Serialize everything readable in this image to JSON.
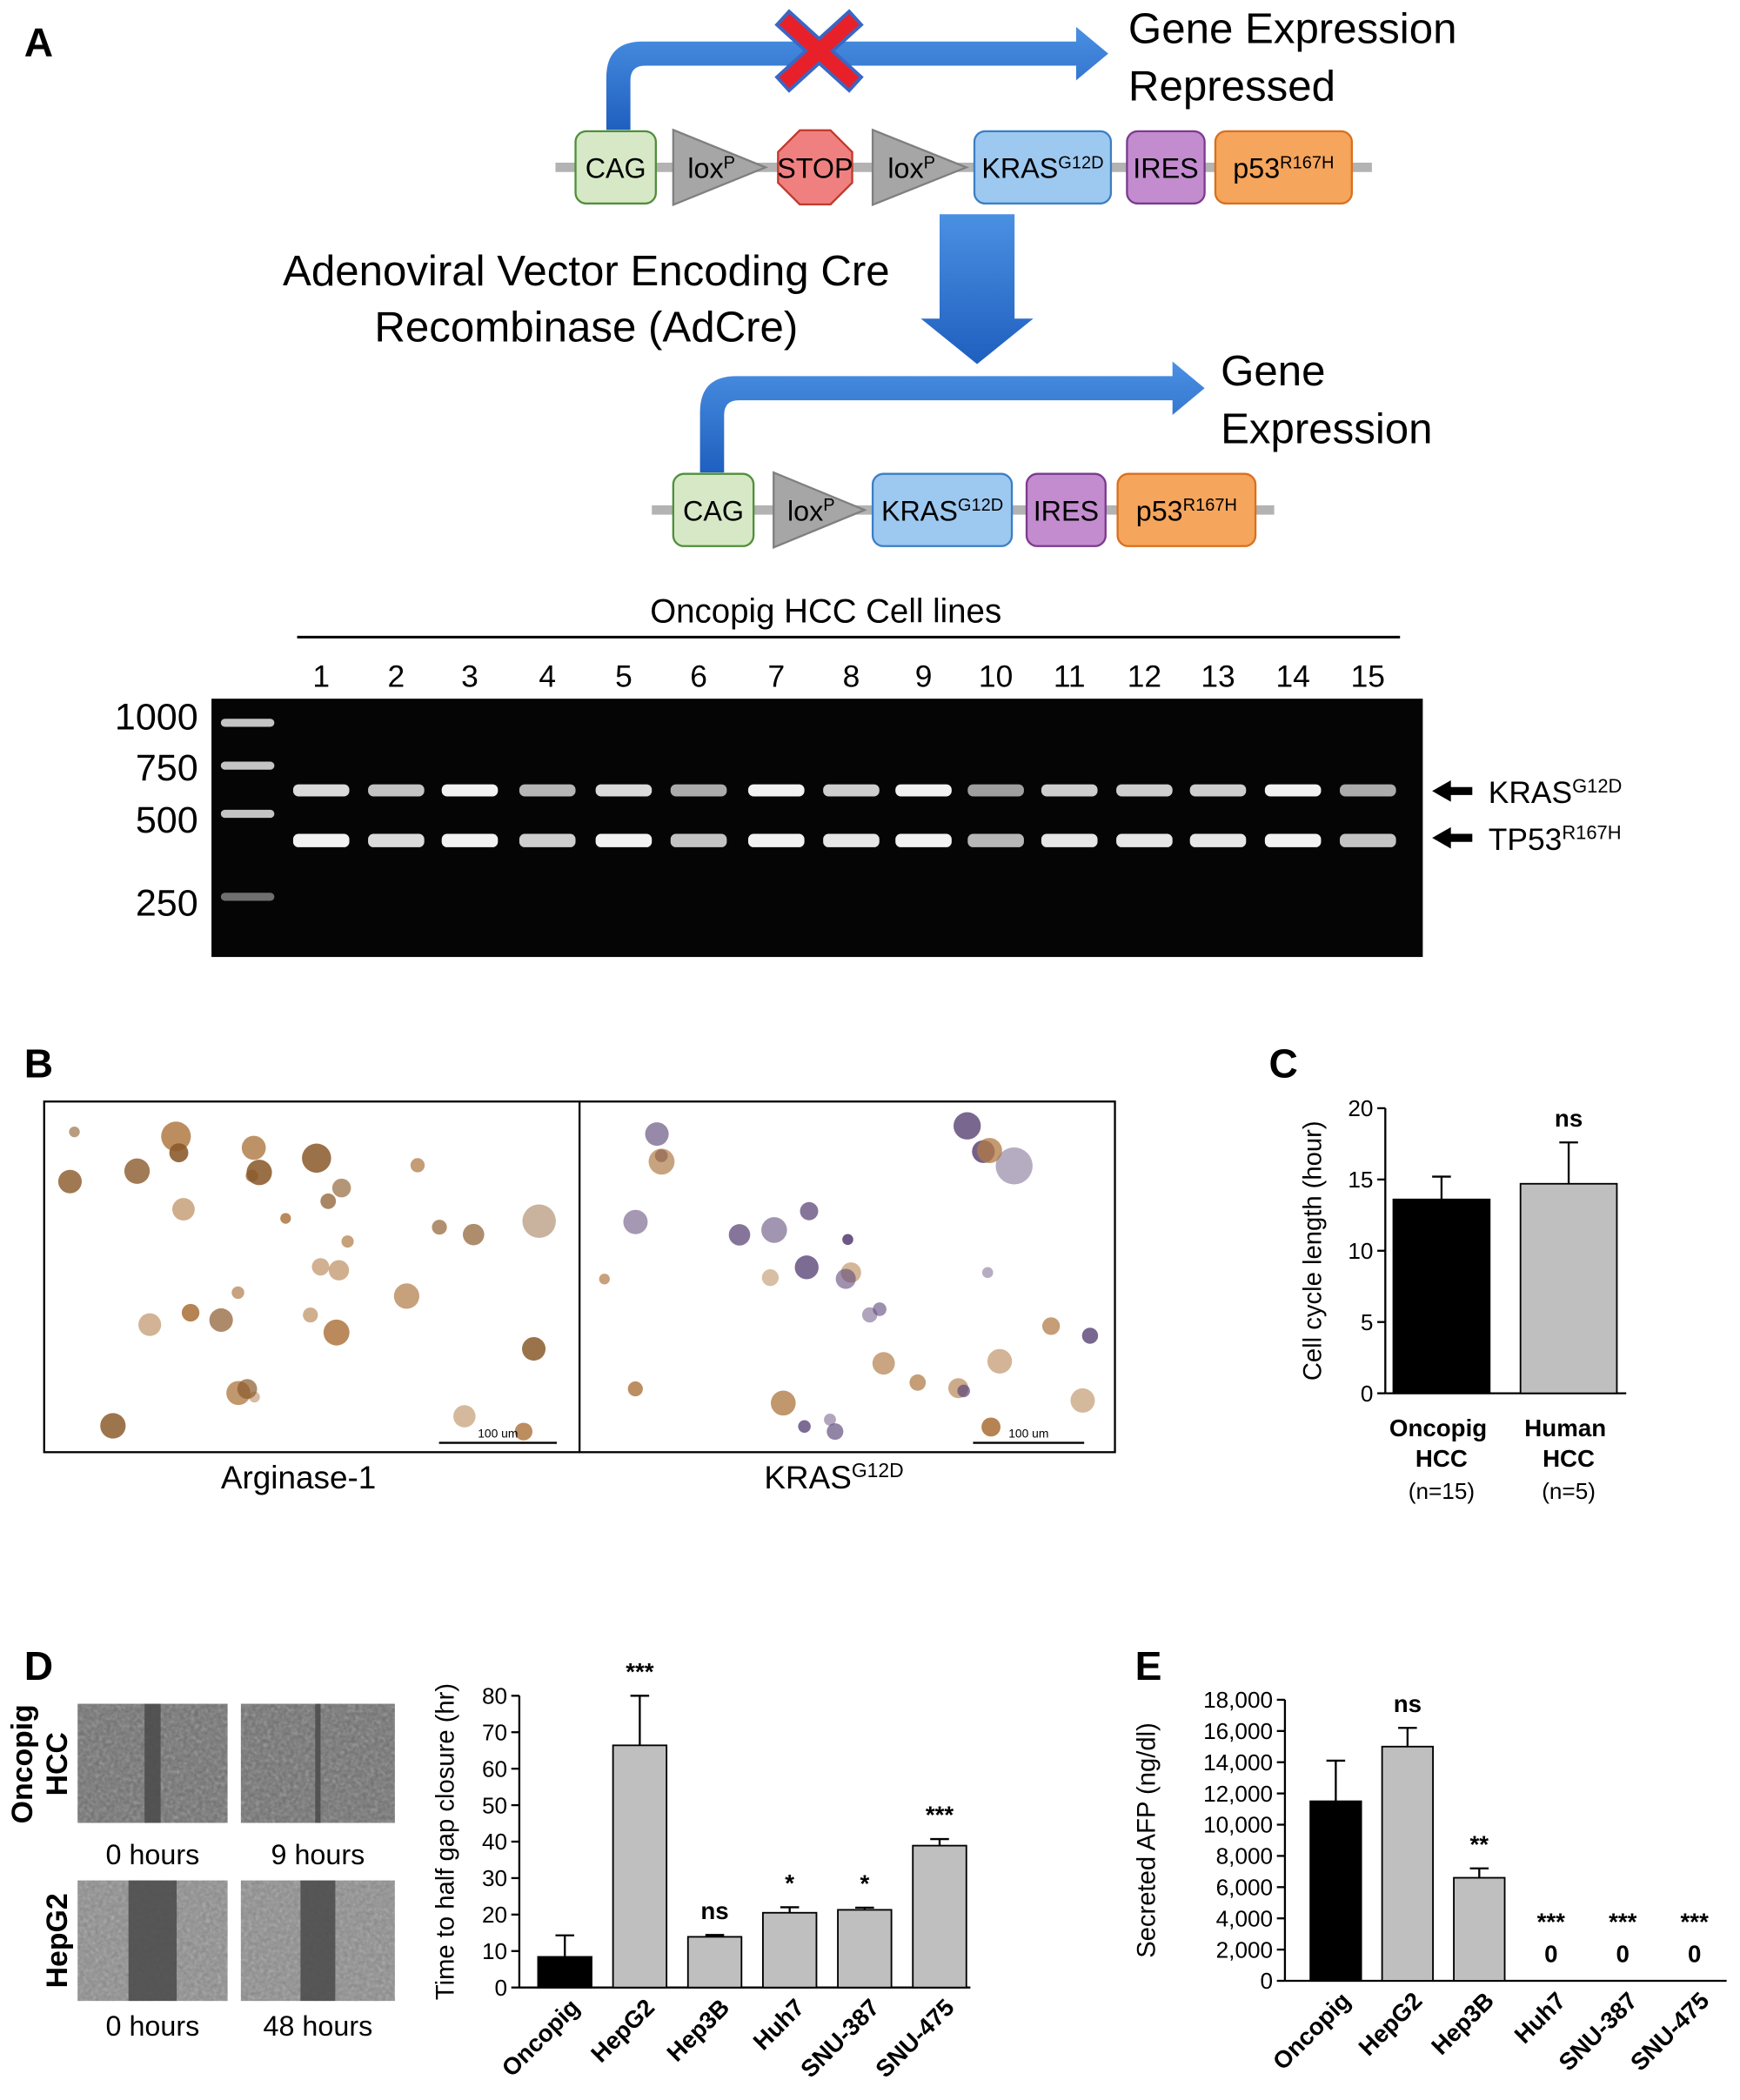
{
  "panel_labels": {
    "a": "A",
    "b": "B",
    "c": "C",
    "d": "D",
    "e": "E"
  },
  "construct": {
    "repressed_label": [
      "Gene Expression",
      "Repressed"
    ],
    "expressed_label": [
      "Gene",
      "Expression"
    ],
    "recombinase_label": [
      "Adenoviral Vector Encoding Cre",
      "Recombinase (AdCre)"
    ],
    "elements": [
      {
        "text": "CAG"
      },
      {
        "text": "lox",
        "sup": "P"
      },
      {
        "text": "STOP"
      },
      {
        "text": "lox",
        "sup": "P"
      },
      {
        "text": "KRAS",
        "sup": "G12D"
      },
      {
        "text": "IRES"
      },
      {
        "text": "p53",
        "sup": "R167H"
      }
    ],
    "recombined_elements": [
      {
        "text": "CAG"
      },
      {
        "text": "lox",
        "sup": "P"
      },
      {
        "text": "KRAS",
        "sup": "G12D"
      },
      {
        "text": "IRES"
      },
      {
        "text": "p53",
        "sup": "R167H"
      }
    ]
  },
  "gel": {
    "title": "Oncopig HCC Cell lines",
    "lanes": [
      "1",
      "2",
      "3",
      "4",
      "5",
      "6",
      "7",
      "8",
      "9",
      "10",
      "11",
      "12",
      "13",
      "14",
      "15"
    ],
    "ladder": [
      "1000",
      "750",
      "500",
      "250"
    ],
    "bands": [
      {
        "text": "KRAS",
        "sup": "G12D"
      },
      {
        "text": "TP53",
        "sup": "R167H"
      }
    ]
  },
  "micrographs": {
    "captions": [
      {
        "text": "Arginase-1"
      },
      {
        "text": "KRAS",
        "sup": "G12D"
      }
    ],
    "scale_bars": [
      "100 um",
      "100 um"
    ]
  },
  "scratch_assay": {
    "rows": [
      [
        "Oncopig",
        "HCC"
      ],
      [
        "HepG2"
      ]
    ],
    "times": [
      "0 hours",
      "9 hours",
      "0 hours",
      "48 hours"
    ]
  },
  "chart_data": [
    {
      "type": "bar",
      "ylabel": "Cell cycle length (hour)",
      "categories": [
        "Oncopig HCC",
        "Human HCC"
      ],
      "sample_sizes": [
        "(n=15)",
        "(n=5)"
      ],
      "values": [
        13.6,
        14.7
      ],
      "errors": [
        1.6,
        2.9
      ],
      "annotations": [
        null,
        "ns"
      ],
      "colors": [
        "#000000",
        "#bfbfbf"
      ],
      "ylim": [
        0,
        20
      ],
      "yticks": [
        0,
        5,
        10,
        15,
        20
      ]
    },
    {
      "type": "bar",
      "ylabel": "Time to half gap closure (hr)",
      "categories": [
        "Oncopig",
        "HepG2",
        "Hep3B",
        "Huh7",
        "SNU-387",
        "SNU-475"
      ],
      "values": [
        8.4,
        66.4,
        13.9,
        20.5,
        21.3,
        38.9
      ],
      "errors": [
        5.9,
        13.6,
        0.5,
        1.5,
        0.6,
        1.8
      ],
      "annotations": [
        null,
        "***",
        "ns",
        "*",
        "*",
        "***"
      ],
      "colors": [
        "#000000",
        "#bfbfbf",
        "#bfbfbf",
        "#bfbfbf",
        "#bfbfbf",
        "#bfbfbf"
      ],
      "ylim": [
        0,
        80
      ],
      "yticks": [
        0,
        10,
        20,
        30,
        40,
        50,
        60,
        70,
        80
      ]
    },
    {
      "type": "bar",
      "ylabel": "Secreted AFP (ng/dl)",
      "categories": [
        "Oncopig",
        "HepG2",
        "Hep3B",
        "Huh7",
        "SNU-387",
        "SNU-475"
      ],
      "values": [
        11500,
        15000,
        6600,
        0,
        0,
        0
      ],
      "value_labels": [
        null,
        null,
        null,
        "0",
        "0",
        "0"
      ],
      "errors": [
        2600,
        1200,
        600,
        null,
        null,
        null
      ],
      "annotations": [
        null,
        "ns",
        "**",
        "***",
        "***",
        "***"
      ],
      "colors": [
        "#000000",
        "#bfbfbf",
        "#bfbfbf",
        "#bfbfbf",
        "#bfbfbf",
        "#bfbfbf"
      ],
      "ylim": [
        0,
        18000
      ],
      "yticks": [
        0,
        {
          "value": 2000,
          "label": "2,000"
        },
        {
          "value": 4000,
          "label": "4,000"
        },
        {
          "value": 6000,
          "label": "6,000"
        },
        {
          "value": 8000,
          "label": "8,000"
        },
        {
          "value": 10000,
          "label": "10,000"
        },
        {
          "value": 12000,
          "label": "12,000"
        },
        {
          "value": 14000,
          "label": "14,000"
        },
        {
          "value": 16000,
          "label": "16,000"
        },
        {
          "value": 18000,
          "label": "18,000"
        }
      ]
    }
  ]
}
